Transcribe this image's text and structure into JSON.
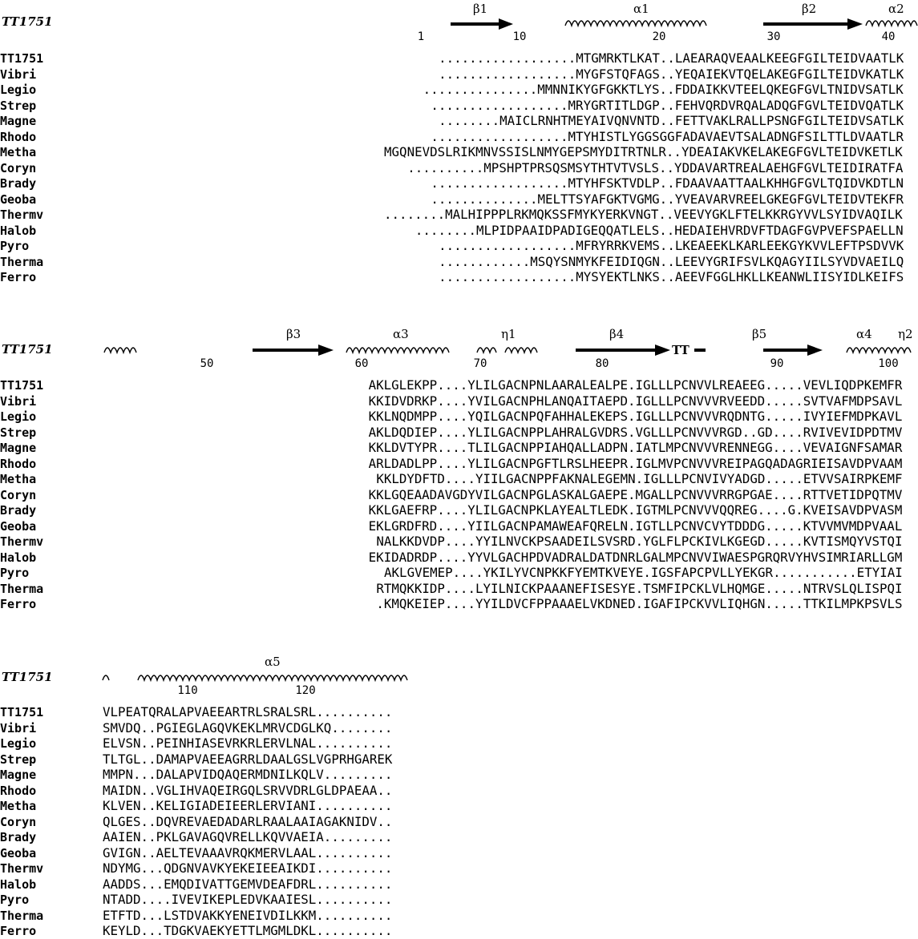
{
  "reference_label": "TT1751",
  "names": [
    "TT1751",
    "Vibri",
    "Legio",
    "Strep",
    "Magne",
    "Rhodo",
    "Metha",
    "Coryn",
    "Brady",
    "Geoba",
    "Thermv",
    "Halob",
    "Pyro",
    "Therma",
    "Ferro"
  ],
  "blocks": [
    {
      "secondary_structure": [
        "β1",
        "α1",
        "β2",
        "α2"
      ],
      "ruler": [
        "1",
        "10",
        "20",
        "30",
        "40"
      ],
      "rows": [
        "..................MTGMRKTLKAT..LAEARAQVEAALKEEGFGILTEIDVAATLK",
        "..................MYGFSTQFAGS..YEQAIEKVTQELAKEGFGILTEIDVKATLK",
        "...............MMNNIKYGFGKKTLYS..FDDAIKKVTEELQKEGFGVLTNIDVSATLK",
        "..................MRYGRTITLDGP..FEHVQRDVRQALADQGFGVLTEIDVQATLK",
        "........MAICLRNHTMEYAIVQNVNTD..FETTVAKLRALLPSNGFGILTEIDVSATLK",
        "..................MTYHISTLYGGSGGFADAVAEVTSALADNGFSILTTLDVAATLR",
        "MGQNEVDSLRIKMNVSSISLNMYGEPSMYDITRTNLR..YDEAIAKVKELAKEGFGVLTEIDVKETLK",
        "..........MPSHPTPRSQSMSYTHTVTVSLS..YDDAVARTREALAEHGFGVLTEIDIRATFA",
        "..................MTYHFSKTVDLP..FDAAVAATTAALKHHGFGVLTQIDVKDTLN",
        "..............MELTTSYAFGKTVGMG..YVEAVARVREELGKEGFGVLTEIDVTEKFR",
        "........MALHIPPPLRKMQKSSFMYKYERKVNGT..VEEVYGKLFTELKKRGYVVLSYIDVAQILK",
        "........MLPIDPAAIDPADIGEQQATLELS..HEDAIEHVRDVFTDAGFGVPVEFSPAELLN",
        "..................MFRYRRKVEMS..LKEAEEKLKARLEEKGYKVVLEFTPSDVVK",
        "............MSQYSNMYKFEIDIQGN..LEEVYGRIFSVLKQAGYIILSYVDVAEILQ",
        "..................MYSYEKTLNKS..AEEVFGGLHKLLKEANWLIISYIDLKEIFS"
      ]
    },
    {
      "secondary_structure": [
        "β3",
        "α3",
        "η1",
        "β4",
        "TT",
        "β5",
        "α4",
        "η2"
      ],
      "ruler": [
        "50",
        "60",
        "70",
        "80",
        "90",
        "100"
      ],
      "rows": [
        "AKLGLEKPP....YLILGACNPNLAARALEALPE.IGLLLPCNVVLREAEEG.....VEVLIQDPKEMFR",
        "KKIDVDRKP....YVILGACNPHLANQAITAEPD.IGLLLPCNVVVRVEEDD.....SVTVAFMDPSAVL",
        "KKLNQDMPP....YQILGACNPQFAHHALEKEPS.IGLLLPCNVVVRQDNTG.....IVYIEFMDPKAVL",
        "AKLDQDIEP....YLILGACNPPLAHRALGVDRS.VGLLLPCNVVVRGD..GD....RVIVEVIDPDTMV",
        "KKLDVTYPR....TLILGACNPPIAHQALLADPN.IATLMPCNVVVRENNEGG....VEVAIGNFSAMAR",
        "ARLDADLPP....YLILGACNPGFTLRSLHEEPR.IGLMVPCNVVVREIPAGQADAGRIEISAVDPVAAM",
        "KKLDYDFTD....YIILGACNPPFAKNALEGEMN.IGLLLPCNVIVYADGD.....ETVVSAIRPKEMF",
        "KKLGQEAADAVGDYVILGACNPGLASKALGAEPE.MGALLPCNVVVRRGPGAE....RTTVETIDPQTMV",
        "KKLGAEFRP....YLILGACNPKLAYEALTLEDK.IGTMLPCNVVVQQREG....G.KVEISAVDPVASM",
        "EKLGRDFRD....YIILGACNPAMAWEAFQRELN.IGTLLPCNVCVYTDDDG.....KTVVMVMDPVAAL",
        "NALKKDVDP....YYILNVCKPSAADEILSVSRD.YGLFLPCKIVLKGEGD.....KVTISMQYVSTQI",
        "EKIDADRDP....YYVLGACHPDVADRALDATDNRLGALMPCNVVIWAESPGRQRVYHVSIMRIARLLGM",
        "AKLGVEMEP....YKILYVCNPKKFYEMTKVEYE.IGSFAPCPVLLYEKGR...........ETYIAI",
        "RTMQKKIDP....LYILNICKPAAANEFISESYE.TSMFIPCKLVLHQMGE.....NTRVSLQLISPQI",
        ".KMQKEIEP....YYILDVCFPPAAAELVKDNED.IGAFIPCKVVLIQHGN.....TTKILMPKPSVLS"
      ]
    },
    {
      "secondary_structure": [
        "α5"
      ],
      "ruler": [
        "110",
        "120"
      ],
      "rows": [
        "VLPEATQRALAPVAEEARTRLSRALSRL..........",
        "SMVDQ..PGIEGLAGQVKEKLMRVCDGLKQ........",
        "ELVSN..PEINHIASEVRKRLERVLNAL..........",
        "TLTGL..DAMAPVAEEAGRRLDAALGSLVGPRHGAREK",
        "MMPN...DALAPVIDQAQERMDNILKQLV.........",
        "MAIDN..VGLIHVAQEIRGQLSRVVDRLGLDPAEAA..",
        "KLVEN..KELIGIADEIEERLERVIANI..........",
        "QLGES..DQVREVAEDADARLRAALAAIAGAKNIDV..",
        "AAIEN..PKLGAVAGQVRELLKQVVAEIA.........",
        "GVIGN..AELTEVAAAVRQKMERVLAAL..........",
        "NDYMG...QDGNVAVKYEKEIEEAIKDI..........",
        "AADDS...EMQDIVATTGEMVDEAFDRL..........",
        "NTADD....IVEVIKEPLEDVKAAIESL..........",
        "ETFTD...LSTDVAKKYENEIVDILKKM..........",
        "KEYLD...TDGKVAEKYETTLMGMLDKL.........."
      ]
    }
  ],
  "colors": {
    "conserved": "#e8141b",
    "similar_box": "#4b5ce8",
    "similar_text": "#e8141b"
  }
}
